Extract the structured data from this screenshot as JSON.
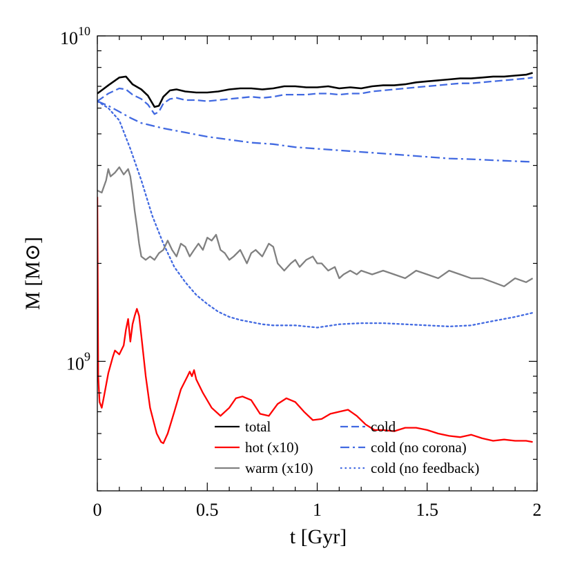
{
  "chart_data": {
    "type": "line",
    "title": "",
    "xlabel": "t [Gyr]",
    "ylabel": "M [M⊙]",
    "xlim": [
      0,
      2
    ],
    "ylim": [
      400000000,
      10000000000
    ],
    "yscale": "log",
    "x_ticks": [
      {
        "value": 0,
        "label": "0"
      },
      {
        "value": 0.5,
        "label": "0.5"
      },
      {
        "value": 1,
        "label": "1"
      },
      {
        "value": 1.5,
        "label": "1.5"
      },
      {
        "value": 2,
        "label": "2"
      }
    ],
    "y_ticks": [
      {
        "value": 1000000000,
        "base": "10",
        "exp": "9"
      },
      {
        "value": 10000000000,
        "base": "10",
        "exp": "10"
      }
    ],
    "legend_position": "bottom-right",
    "series": [
      {
        "name": "total",
        "color": "#000000",
        "style": "solid",
        "x": [
          0,
          0.05,
          0.1,
          0.13,
          0.16,
          0.2,
          0.23,
          0.26,
          0.28,
          0.3,
          0.33,
          0.36,
          0.4,
          0.45,
          0.5,
          0.55,
          0.6,
          0.65,
          0.7,
          0.75,
          0.8,
          0.85,
          0.9,
          0.95,
          1.0,
          1.05,
          1.1,
          1.15,
          1.2,
          1.25,
          1.3,
          1.35,
          1.4,
          1.45,
          1.5,
          1.55,
          1.6,
          1.65,
          1.7,
          1.75,
          1.8,
          1.85,
          1.9,
          1.95,
          1.98
        ],
        "y": [
          6650000000.0,
          7050000000.0,
          7450000000.0,
          7500000000.0,
          7100000000.0,
          6850000000.0,
          6550000000.0,
          6050000000.0,
          6100000000.0,
          6500000000.0,
          6800000000.0,
          6850000000.0,
          6750000000.0,
          6700000000.0,
          6700000000.0,
          6750000000.0,
          6850000000.0,
          6900000000.0,
          6900000000.0,
          6850000000.0,
          6900000000.0,
          7000000000.0,
          7000000000.0,
          6950000000.0,
          6950000000.0,
          7000000000.0,
          6900000000.0,
          6950000000.0,
          6900000000.0,
          7000000000.0,
          7050000000.0,
          7050000000.0,
          7100000000.0,
          7200000000.0,
          7250000000.0,
          7300000000.0,
          7350000000.0,
          7400000000.0,
          7400000000.0,
          7450000000.0,
          7500000000.0,
          7500000000.0,
          7550000000.0,
          7600000000.0,
          7700000000.0
        ]
      },
      {
        "name": "cold",
        "color": "#4169e1",
        "style": "dashed",
        "x": [
          0,
          0.05,
          0.1,
          0.13,
          0.16,
          0.2,
          0.23,
          0.26,
          0.28,
          0.3,
          0.33,
          0.36,
          0.4,
          0.45,
          0.5,
          0.55,
          0.6,
          0.65,
          0.7,
          0.75,
          0.8,
          0.85,
          0.9,
          0.95,
          1.0,
          1.05,
          1.1,
          1.15,
          1.2,
          1.25,
          1.3,
          1.35,
          1.4,
          1.45,
          1.5,
          1.55,
          1.6,
          1.65,
          1.7,
          1.75,
          1.8,
          1.85,
          1.9,
          1.95,
          1.98
        ],
        "y": [
          6300000000.0,
          6650000000.0,
          6900000000.0,
          6850000000.0,
          6600000000.0,
          6400000000.0,
          6150000000.0,
          5750000000.0,
          5850000000.0,
          6200000000.0,
          6400000000.0,
          6450000000.0,
          6350000000.0,
          6350000000.0,
          6300000000.0,
          6350000000.0,
          6400000000.0,
          6450000000.0,
          6500000000.0,
          6450000000.0,
          6500000000.0,
          6600000000.0,
          6600000000.0,
          6600000000.0,
          6650000000.0,
          6650000000.0,
          6600000000.0,
          6650000000.0,
          6650000000.0,
          6750000000.0,
          6800000000.0,
          6850000000.0,
          6900000000.0,
          6950000000.0,
          7000000000.0,
          7050000000.0,
          7100000000.0,
          7150000000.0,
          7150000000.0,
          7200000000.0,
          7250000000.0,
          7300000000.0,
          7350000000.0,
          7400000000.0,
          7450000000.0
        ]
      },
      {
        "name": "cold (no corona)",
        "color": "#4169e1",
        "style": "dashdot",
        "x": [
          0,
          0.05,
          0.1,
          0.15,
          0.2,
          0.3,
          0.4,
          0.5,
          0.6,
          0.7,
          0.8,
          0.9,
          1.0,
          1.1,
          1.2,
          1.3,
          1.4,
          1.5,
          1.6,
          1.7,
          1.8,
          1.9,
          1.98
        ],
        "y": [
          6300000000.0,
          6100000000.0,
          5850000000.0,
          5600000000.0,
          5400000000.0,
          5200000000.0,
          5050000000.0,
          4900000000.0,
          4800000000.0,
          4700000000.0,
          4650000000.0,
          4550000000.0,
          4500000000.0,
          4450000000.0,
          4400000000.0,
          4350000000.0,
          4300000000.0,
          4250000000.0,
          4200000000.0,
          4180000000.0,
          4150000000.0,
          4120000000.0,
          4100000000.0
        ]
      },
      {
        "name": "cold (no feedback)",
        "color": "#4169e1",
        "style": "dotted",
        "x": [
          0,
          0.05,
          0.1,
          0.15,
          0.2,
          0.25,
          0.3,
          0.35,
          0.4,
          0.45,
          0.5,
          0.55,
          0.6,
          0.65,
          0.7,
          0.75,
          0.8,
          0.9,
          1.0,
          1.1,
          1.2,
          1.3,
          1.4,
          1.5,
          1.6,
          1.7,
          1.8,
          1.9,
          1.98
        ],
        "y": [
          6300000000.0,
          6000000000.0,
          5500000000.0,
          4500000000.0,
          3600000000.0,
          2800000000.0,
          2300000000.0,
          1950000000.0,
          1750000000.0,
          1600000000.0,
          1500000000.0,
          1420000000.0,
          1370000000.0,
          1340000000.0,
          1320000000.0,
          1300000000.0,
          1290000000.0,
          1290000000.0,
          1270000000.0,
          1300000000.0,
          1310000000.0,
          1310000000.0,
          1300000000.0,
          1290000000.0,
          1280000000.0,
          1290000000.0,
          1330000000.0,
          1370000000.0,
          1410000000.0
        ]
      },
      {
        "name": "hot (x10)",
        "color": "#ff0000",
        "style": "solid",
        "x": [
          0,
          0.004,
          0.01,
          0.02,
          0.03,
          0.05,
          0.07,
          0.08,
          0.1,
          0.12,
          0.13,
          0.14,
          0.15,
          0.16,
          0.17,
          0.18,
          0.19,
          0.2,
          0.22,
          0.24,
          0.27,
          0.29,
          0.3,
          0.32,
          0.35,
          0.38,
          0.41,
          0.42,
          0.43,
          0.44,
          0.45,
          0.48,
          0.52,
          0.56,
          0.6,
          0.63,
          0.66,
          0.7,
          0.74,
          0.78,
          0.82,
          0.86,
          0.9,
          0.94,
          0.98,
          1.02,
          1.06,
          1.1,
          1.14,
          1.18,
          1.22,
          1.26,
          1.3,
          1.35,
          1.4,
          1.45,
          1.5,
          1.55,
          1.6,
          1.65,
          1.7,
          1.75,
          1.8,
          1.85,
          1.9,
          1.95,
          1.98
        ],
        "y": [
          3200000000.0,
          900000000.0,
          750000000.0,
          720000000.0,
          780000000.0,
          920000000.0,
          1030000000.0,
          1080000000.0,
          1050000000.0,
          1120000000.0,
          1250000000.0,
          1350000000.0,
          1150000000.0,
          1300000000.0,
          1380000000.0,
          1450000000.0,
          1380000000.0,
          1200000000.0,
          900000000.0,
          720000000.0,
          600000000.0,
          565000000.0,
          560000000.0,
          600000000.0,
          700000000.0,
          820000000.0,
          900000000.0,
          930000000.0,
          900000000.0,
          940000000.0,
          880000000.0,
          800000000.0,
          720000000.0,
          680000000.0,
          720000000.0,
          770000000.0,
          780000000.0,
          760000000.0,
          690000000.0,
          680000000.0,
          740000000.0,
          770000000.0,
          750000000.0,
          700000000.0,
          660000000.0,
          665000000.0,
          690000000.0,
          700000000.0,
          710000000.0,
          680000000.0,
          640000000.0,
          615000000.0,
          615000000.0,
          610000000.0,
          625000000.0,
          625000000.0,
          615000000.0,
          600000000.0,
          590000000.0,
          585000000.0,
          595000000.0,
          580000000.0,
          570000000.0,
          575000000.0,
          570000000.0,
          570000000.0,
          565000000.0
        ]
      },
      {
        "name": "warm (x10)",
        "color": "#808080",
        "style": "solid",
        "x": [
          0,
          0.02,
          0.04,
          0.05,
          0.06,
          0.08,
          0.1,
          0.12,
          0.14,
          0.15,
          0.16,
          0.17,
          0.18,
          0.19,
          0.2,
          0.22,
          0.24,
          0.26,
          0.28,
          0.3,
          0.32,
          0.34,
          0.36,
          0.38,
          0.4,
          0.42,
          0.44,
          0.46,
          0.48,
          0.5,
          0.52,
          0.54,
          0.56,
          0.58,
          0.6,
          0.62,
          0.65,
          0.68,
          0.7,
          0.72,
          0.75,
          0.78,
          0.8,
          0.82,
          0.85,
          0.88,
          0.9,
          0.92,
          0.95,
          0.98,
          1.0,
          1.02,
          1.05,
          1.08,
          1.1,
          1.12,
          1.15,
          1.18,
          1.2,
          1.25,
          1.3,
          1.35,
          1.4,
          1.45,
          1.5,
          1.55,
          1.6,
          1.65,
          1.7,
          1.75,
          1.8,
          1.85,
          1.9,
          1.95,
          1.98
        ],
        "y": [
          3350000000.0,
          3300000000.0,
          3600000000.0,
          3900000000.0,
          3700000000.0,
          3800000000.0,
          3950000000.0,
          3750000000.0,
          3900000000.0,
          3700000000.0,
          3300000000.0,
          2900000000.0,
          2600000000.0,
          2300000000.0,
          2100000000.0,
          2050000000.0,
          2100000000.0,
          2050000000.0,
          2150000000.0,
          2200000000.0,
          2350000000.0,
          2200000000.0,
          2100000000.0,
          2300000000.0,
          2250000000.0,
          2100000000.0,
          2200000000.0,
          2300000000.0,
          2200000000.0,
          2400000000.0,
          2350000000.0,
          2450000000.0,
          2200000000.0,
          2150000000.0,
          2050000000.0,
          2100000000.0,
          2200000000.0,
          2000000000.0,
          2150000000.0,
          2200000000.0,
          2100000000.0,
          2300000000.0,
          2250000000.0,
          2000000000.0,
          1900000000.0,
          2000000000.0,
          2050000000.0,
          1950000000.0,
          2050000000.0,
          2100000000.0,
          2000000000.0,
          2000000000.0,
          1900000000.0,
          1950000000.0,
          1800000000.0,
          1850000000.0,
          1900000000.0,
          1850000000.0,
          1900000000.0,
          1850000000.0,
          1900000000.0,
          1850000000.0,
          1800000000.0,
          1900000000.0,
          1850000000.0,
          1800000000.0,
          1900000000.0,
          1850000000.0,
          1800000000.0,
          1800000000.0,
          1750000000.0,
          1700000000.0,
          1800000000.0,
          1750000000.0,
          1800000000.0
        ]
      }
    ],
    "legend": [
      {
        "label": "total",
        "color": "#000000",
        "style": "solid"
      },
      {
        "label": "hot (x10)",
        "color": "#ff0000",
        "style": "solid"
      },
      {
        "label": "warm (x10)",
        "color": "#808080",
        "style": "solid"
      },
      {
        "label": "cold",
        "color": "#4169e1",
        "style": "dashed"
      },
      {
        "label": "cold (no corona)",
        "color": "#4169e1",
        "style": "dashdot"
      },
      {
        "label": "cold (no feedback)",
        "color": "#4169e1",
        "style": "dotted"
      }
    ]
  }
}
